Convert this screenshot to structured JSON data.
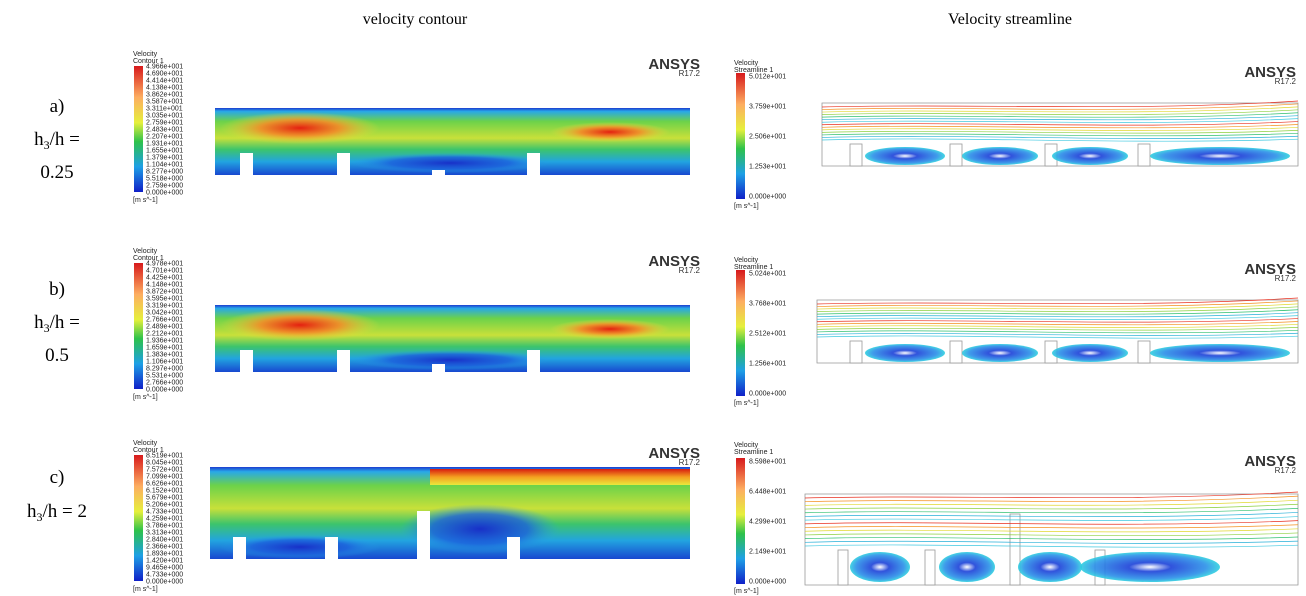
{
  "headers": [
    "velocity contour",
    "Velocity streamline"
  ],
  "rows": [
    {
      "letter": "a)",
      "ratio_symbol": "h",
      "ratio_subscript": "3",
      "ratio_rest": "/h =",
      "ratio_value": "0.25",
      "contour": {
        "legend_title": "Velocity",
        "legend_subtitle": "Contour 1",
        "legend_values": [
          "4.966e+001",
          "4.690e+001",
          "4.414e+001",
          "4.138e+001",
          "3.862e+001",
          "3.587e+001",
          "3.311e+001",
          "3.035e+001",
          "2.759e+001",
          "2.483e+001",
          "2.207e+001",
          "1.931e+001",
          "1.655e+001",
          "1.379e+001",
          "1.104e+001",
          "8.277e+000",
          "5.518e+000",
          "2.759e+000",
          "0.000e+000"
        ],
        "unit": "[m s^-1]",
        "brand": "ANSYS",
        "version": "R17.2"
      },
      "streamline": {
        "legend_title": "Velocity",
        "legend_subtitle": "Streamline 1",
        "legend_values": [
          "5.012e+001",
          "3.759e+001",
          "2.506e+001",
          "1.253e+001",
          "0.000e+000"
        ],
        "unit": "[m s^-1]",
        "brand": "ANSYS",
        "version": "R17.2"
      }
    },
    {
      "letter": "b)",
      "ratio_symbol": "h",
      "ratio_subscript": "3",
      "ratio_rest": "/h =",
      "ratio_value": "0.5",
      "contour": {
        "legend_title": "Velocity",
        "legend_subtitle": "Contour 1",
        "legend_values": [
          "4.978e+001",
          "4.701e+001",
          "4.425e+001",
          "4.148e+001",
          "3.872e+001",
          "3.595e+001",
          "3.319e+001",
          "3.042e+001",
          "2.766e+001",
          "2.489e+001",
          "2.212e+001",
          "1.936e+001",
          "1.659e+001",
          "1.383e+001",
          "1.106e+001",
          "8.297e+000",
          "5.531e+000",
          "2.766e+000",
          "0.000e+000"
        ],
        "unit": "[m s^-1]",
        "brand": "ANSYS",
        "version": "R17.2"
      },
      "streamline": {
        "legend_title": "Velocity",
        "legend_subtitle": "Streamline 1",
        "legend_values": [
          "5.024e+001",
          "3.768e+001",
          "2.512e+001",
          "1.256e+001",
          "0.000e+000"
        ],
        "unit": "[m s^-1]",
        "brand": "ANSYS",
        "version": "R17.2"
      }
    },
    {
      "letter": "c)",
      "ratio_symbol": "h",
      "ratio_subscript": "3",
      "ratio_rest": "/h =",
      "ratio_value": "2",
      "contour": {
        "legend_title": "Velocity",
        "legend_subtitle": "Contour 1",
        "legend_values": [
          "8.519e+001",
          "8.045e+001",
          "7.572e+001",
          "7.099e+001",
          "6.626e+001",
          "6.152e+001",
          "5.679e+001",
          "5.206e+001",
          "4.733e+001",
          "4.259e+001",
          "3.786e+001",
          "3.313e+001",
          "2.840e+001",
          "2.366e+001",
          "1.893e+001",
          "1.420e+001",
          "9.465e+000",
          "4.733e+000",
          "0.000e+000"
        ],
        "unit": "[m s^-1]",
        "brand": "ANSYS",
        "version": "R17.2"
      },
      "streamline": {
        "legend_title": "Velocity",
        "legend_subtitle": "Streamline 1",
        "legend_values": [
          "8.598e+001",
          "6.448e+001",
          "4.299e+001",
          "2.149e+001",
          "0.000e+000"
        ],
        "unit": "[m s^-1]",
        "brand": "ANSYS",
        "version": "R17.2"
      }
    }
  ]
}
